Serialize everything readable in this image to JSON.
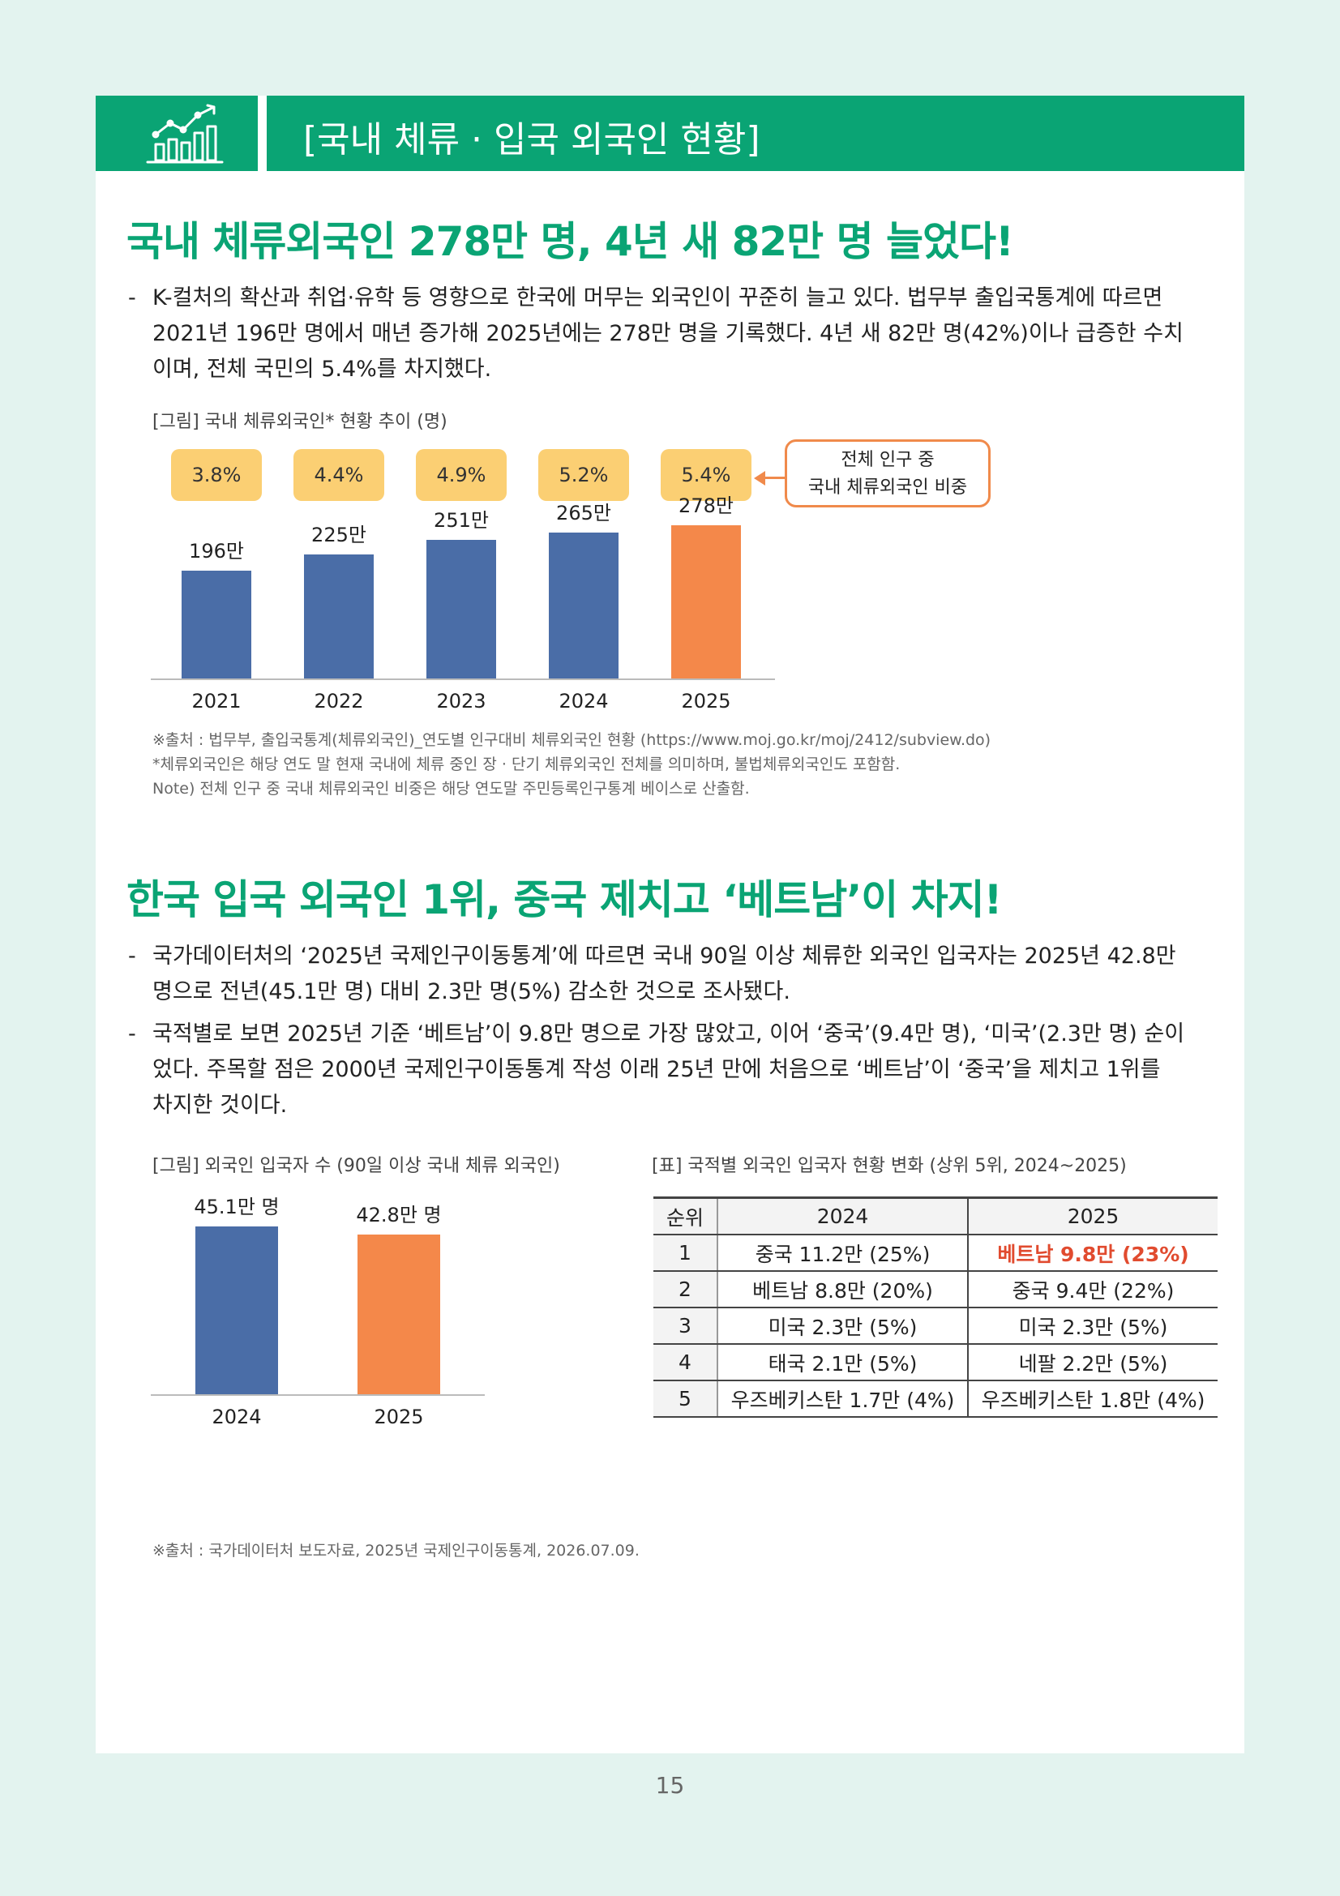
{
  "header": {
    "title": "[국내 체류 · 입국 외국인 현황]"
  },
  "section1": {
    "headline": "국내 체류외국인 278만 명, 4년 새 82만 명 늘었다!",
    "paragraph_lines": [
      "K-컬처의 확산과 취업·유학 등 영향으로 한국에 머무는 외국인이 꾸준히 늘고 있다. 법무부 출입국통계에 따르면",
      "2021년 196만 명에서 매년 증가해 2025년에는 278만 명을 기록했다. 4년 새 82만 명(42%)이나 급증한 수치",
      "이며, 전체 국민의 5.4%를 차지했다."
    ],
    "figure_caption": "[그림] 국내 체류외국인* 현황 추이 (명)",
    "callout_lines": [
      "전체 인구 중",
      "국내 체류외국인 비중"
    ],
    "notes": [
      "※출처 : 법무부, 출입국통계(체류외국인)_연도별 인구대비 체류외국인 현황 (https://www.moj.go.kr/moj/2412/subview.do)",
      "*체류외국인은 해당 연도 말 현재 국내에 체류 중인 장 · 단기 체류외국인 전체를 의미하며, 불법체류외국인도 포함함.",
      "Note) 전체 인구 중 국내 체류외국인 비중은 해당 연도말 주민등록인구통계 베이스로 산출함."
    ]
  },
  "section2": {
    "headline": "한국 입국 외국인 1위, 중국 제치고 ‘베트남’이 차지!",
    "bullet1_lines": [
      "국가데이터처의 ‘2025년 국제인구이동통계’에 따르면 국내 90일 이상 체류한 외국인 입국자는 2025년 42.8만",
      "명으로 전년(45.1만 명) 대비 2.3만 명(5%) 감소한 것으로 조사됐다."
    ],
    "bullet2_lines": [
      "국적별로 보면 2025년 기준 ‘베트남’이 9.8만 명으로 가장 많았고, 이어 ‘중국’(9.4만 명), ‘미국’(2.3만 명) 순이",
      "었다. 주목할 점은 2000년 국제인구이동통계 작성 이래 25년 만에 처음으로 ‘베트남’이 ‘중국’을 제치고 1위를",
      "차지한 것이다."
    ],
    "figure_caption": "[그림] 외국인 입국자 수 (90일 이상 국내 체류 외국인)",
    "table_caption": "[표] 국적별 외국인 입국자 현황 변화 (상위 5위, 2024~2025)",
    "table": {
      "headers": [
        "순위",
        "2024",
        "2025"
      ],
      "rows": [
        [
          "1",
          "중국 11.2만 (25%)",
          "베트남 9.8만 (23%)"
        ],
        [
          "2",
          "베트남 8.8만 (20%)",
          "중국 9.4만 (22%)"
        ],
        [
          "3",
          "미국 2.3만 (5%)",
          "미국 2.3만 (5%)"
        ],
        [
          "4",
          "태국 2.1만 (5%)",
          "네팔 2.2만 (5%)"
        ],
        [
          "5",
          "우즈베키스탄 1.7만 (4%)",
          "우즈베키스탄 1.8만 (4%)"
        ]
      ]
    },
    "note": "※출처 : 국가데이터처 보도자료, 2025년 국제인구이동통계, 2026.07.09."
  },
  "chart_data": [
    {
      "type": "bar",
      "categories": [
        "2021",
        "2022",
        "2023",
        "2024",
        "2025"
      ],
      "values": [
        196,
        225,
        251,
        265,
        278
      ],
      "value_labels": [
        "196만",
        "225만",
        "251만",
        "265만",
        "278만"
      ],
      "share_labels": [
        "3.8%",
        "4.4%",
        "4.9%",
        "5.2%",
        "5.4%"
      ],
      "colors": [
        "#4a6da7",
        "#4a6da7",
        "#4a6da7",
        "#4a6da7",
        "#f4884a"
      ],
      "ylim": [
        0,
        300
      ]
    },
    {
      "type": "bar",
      "categories": [
        "2024",
        "2025"
      ],
      "values": [
        45.1,
        42.8
      ],
      "value_labels": [
        "45.1만 명",
        "42.8만 명"
      ],
      "colors": [
        "#4a6da7",
        "#f4884a"
      ],
      "ylim": [
        0,
        50
      ]
    }
  ],
  "page_number": "15"
}
